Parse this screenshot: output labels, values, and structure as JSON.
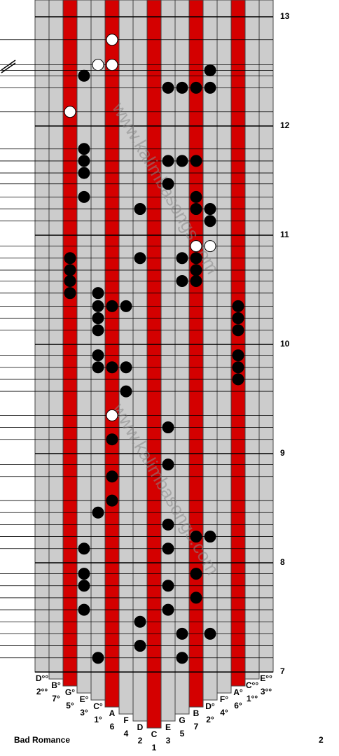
{
  "title": "Bad Romance",
  "page": "2",
  "watermark": "www.kalimbasongs.com",
  "measures": [
    7,
    8,
    9,
    10,
    11,
    12,
    13
  ],
  "tines": [
    {
      "note": "D°°",
      "num": "2°°",
      "color": "#cccccc"
    },
    {
      "note": "B°",
      "num": "7°",
      "color": "#cccccc"
    },
    {
      "note": "G°",
      "num": "5°",
      "color": "#d40000"
    },
    {
      "note": "E°",
      "num": "3°",
      "color": "#cccccc"
    },
    {
      "note": "C°",
      "num": "1°",
      "color": "#cccccc"
    },
    {
      "note": "A",
      "num": "6",
      "color": "#d40000"
    },
    {
      "note": "F",
      "num": "4",
      "color": "#cccccc"
    },
    {
      "note": "D",
      "num": "2",
      "color": "#cccccc"
    },
    {
      "note": "C",
      "num": "1",
      "color": "#d40000"
    },
    {
      "note": "E",
      "num": "3",
      "color": "#cccccc"
    },
    {
      "note": "G",
      "num": "5",
      "color": "#cccccc"
    },
    {
      "note": "B",
      "num": "7",
      "color": "#d40000"
    },
    {
      "note": "D°",
      "num": "2°",
      "color": "#cccccc"
    },
    {
      "note": "F°",
      "num": "4°",
      "color": "#cccccc"
    },
    {
      "note": "A°",
      "num": "6°",
      "color": "#d40000"
    },
    {
      "note": "C°°",
      "num": "1°°",
      "color": "#cccccc"
    },
    {
      "note": "E°°",
      "num": "3°°",
      "color": "#cccccc"
    }
  ],
  "notes": [
    {
      "tine": 5,
      "time": 12.79,
      "hollow": true
    },
    {
      "tine": 4,
      "time": 12.56,
      "hollow": true
    },
    {
      "tine": 5,
      "time": 12.56,
      "hollow": true
    },
    {
      "tine": 12,
      "time": 12.51,
      "hollow": false
    },
    {
      "tine": 3,
      "time": 12.46,
      "hollow": false
    },
    {
      "tine": 9,
      "time": 12.35,
      "hollow": false
    },
    {
      "tine": 10,
      "time": 12.35,
      "hollow": false
    },
    {
      "tine": 11,
      "time": 12.35,
      "hollow": false
    },
    {
      "tine": 12,
      "time": 12.35,
      "hollow": false
    },
    {
      "tine": 2,
      "time": 12.13,
      "hollow": true
    },
    {
      "tine": 3,
      "time": 11.79,
      "hollow": false
    },
    {
      "tine": 3,
      "time": 11.68,
      "hollow": false
    },
    {
      "tine": 9,
      "time": 11.68,
      "hollow": false
    },
    {
      "tine": 10,
      "time": 11.68,
      "hollow": false
    },
    {
      "tine": 11,
      "time": 11.68,
      "hollow": false
    },
    {
      "tine": 3,
      "time": 11.57,
      "hollow": false
    },
    {
      "tine": 9,
      "time": 11.47,
      "hollow": false
    },
    {
      "tine": 3,
      "time": 11.35,
      "hollow": false
    },
    {
      "tine": 11,
      "time": 11.35,
      "hollow": false
    },
    {
      "tine": 7,
      "time": 11.24,
      "hollow": false
    },
    {
      "tine": 11,
      "time": 11.24,
      "hollow": false
    },
    {
      "tine": 12,
      "time": 11.24,
      "hollow": false
    },
    {
      "tine": 12,
      "time": 11.13,
      "hollow": false
    },
    {
      "tine": 11,
      "time": 10.9,
      "hollow": true
    },
    {
      "tine": 12,
      "time": 10.9,
      "hollow": true
    },
    {
      "tine": 2,
      "time": 10.79,
      "hollow": false
    },
    {
      "tine": 7,
      "time": 10.79,
      "hollow": false
    },
    {
      "tine": 10,
      "time": 10.79,
      "hollow": false
    },
    {
      "tine": 11,
      "time": 10.79,
      "hollow": false
    },
    {
      "tine": 2,
      "time": 10.68,
      "hollow": false
    },
    {
      "tine": 11,
      "time": 10.68,
      "hollow": false
    },
    {
      "tine": 2,
      "time": 10.58,
      "hollow": false
    },
    {
      "tine": 10,
      "time": 10.58,
      "hollow": false
    },
    {
      "tine": 11,
      "time": 10.58,
      "hollow": false
    },
    {
      "tine": 2,
      "time": 10.47,
      "hollow": false
    },
    {
      "tine": 4,
      "time": 10.47,
      "hollow": false
    },
    {
      "tine": 4,
      "time": 10.35,
      "hollow": false
    },
    {
      "tine": 5,
      "time": 10.35,
      "hollow": false
    },
    {
      "tine": 6,
      "time": 10.35,
      "hollow": false
    },
    {
      "tine": 14,
      "time": 10.35,
      "hollow": false
    },
    {
      "tine": 4,
      "time": 10.24,
      "hollow": false
    },
    {
      "tine": 14,
      "time": 10.24,
      "hollow": false
    },
    {
      "tine": 4,
      "time": 10.13,
      "hollow": false
    },
    {
      "tine": 14,
      "time": 10.13,
      "hollow": false
    },
    {
      "tine": 4,
      "time": 9.9,
      "hollow": false
    },
    {
      "tine": 14,
      "time": 9.9,
      "hollow": false
    },
    {
      "tine": 4,
      "time": 9.79,
      "hollow": false
    },
    {
      "tine": 5,
      "time": 9.79,
      "hollow": false
    },
    {
      "tine": 6,
      "time": 9.79,
      "hollow": false
    },
    {
      "tine": 14,
      "time": 9.79,
      "hollow": false
    },
    {
      "tine": 14,
      "time": 9.68,
      "hollow": false
    },
    {
      "tine": 6,
      "time": 9.57,
      "hollow": false
    },
    {
      "tine": 5,
      "time": 9.35,
      "hollow": true
    },
    {
      "tine": 9,
      "time": 9.24,
      "hollow": false
    },
    {
      "tine": 5,
      "time": 9.13,
      "hollow": false
    },
    {
      "tine": 9,
      "time": 8.9,
      "hollow": false
    },
    {
      "tine": 5,
      "time": 8.79,
      "hollow": false
    },
    {
      "tine": 5,
      "time": 8.57,
      "hollow": false
    },
    {
      "tine": 4,
      "time": 8.46,
      "hollow": false
    },
    {
      "tine": 9,
      "time": 8.35,
      "hollow": false
    },
    {
      "tine": 11,
      "time": 8.24,
      "hollow": false
    },
    {
      "tine": 12,
      "time": 8.24,
      "hollow": false
    },
    {
      "tine": 3,
      "time": 8.13,
      "hollow": false
    },
    {
      "tine": 9,
      "time": 8.13,
      "hollow": false
    },
    {
      "tine": 3,
      "time": 7.9,
      "hollow": false
    },
    {
      "tine": 11,
      "time": 7.9,
      "hollow": false
    },
    {
      "tine": 3,
      "time": 7.79,
      "hollow": false
    },
    {
      "tine": 9,
      "time": 7.79,
      "hollow": false
    },
    {
      "tine": 11,
      "time": 7.68,
      "hollow": false
    },
    {
      "tine": 3,
      "time": 7.57,
      "hollow": false
    },
    {
      "tine": 9,
      "time": 7.57,
      "hollow": false
    },
    {
      "tine": 7,
      "time": 7.46,
      "hollow": false
    },
    {
      "tine": 10,
      "time": 7.35,
      "hollow": false
    },
    {
      "tine": 12,
      "time": 7.35,
      "hollow": false
    },
    {
      "tine": 7,
      "time": 7.24,
      "hollow": false
    },
    {
      "tine": 4,
      "time": 7.13,
      "hollow": false
    },
    {
      "tine": 10,
      "time": 7.13,
      "hollow": false
    }
  ]
}
